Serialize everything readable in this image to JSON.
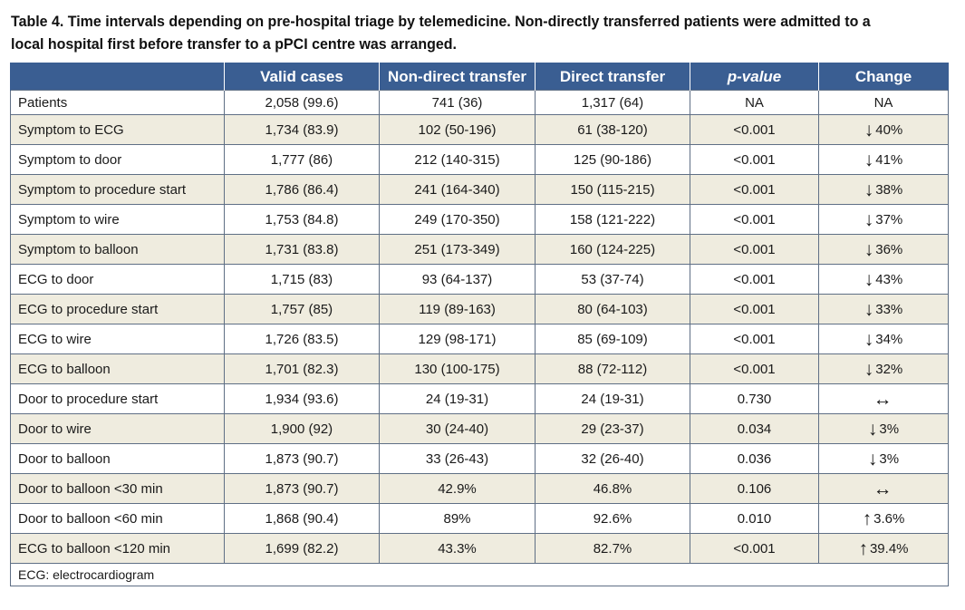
{
  "caption": "Table 4. Time intervals depending on pre-hospital triage by telemedicine. Non-directly transferred patients were admitted to a local hospital first before transfer to a pPCI centre was arranged.",
  "headers": {
    "label": "",
    "valid": "Valid cases",
    "nondirect": "Non-direct transfer",
    "direct": "Direct transfer",
    "pvalue": "p-value",
    "change": "Change"
  },
  "rows": [
    {
      "label": "Patients",
      "valid": "2,058 (99.6)",
      "nondirect": "741 (36)",
      "direct": "1,317 (64)",
      "p": "NA",
      "arrow": "",
      "change": "NA"
    },
    {
      "label": "Symptom to ECG",
      "valid": "1,734 (83.9)",
      "nondirect": "102 (50-196)",
      "direct": "61 (38-120)",
      "p": "<0.001",
      "arrow": "↓",
      "change": "40%"
    },
    {
      "label": "Symptom to door",
      "valid": "1,777 (86)",
      "nondirect": "212 (140-315)",
      "direct": "125 (90-186)",
      "p": "<0.001",
      "arrow": "↓",
      "change": "41%"
    },
    {
      "label": "Symptom to procedure start",
      "valid": "1,786 (86.4)",
      "nondirect": "241 (164-340)",
      "direct": "150 (115-215)",
      "p": "<0.001",
      "arrow": "↓",
      "change": "38%"
    },
    {
      "label": "Symptom to wire",
      "valid": "1,753 (84.8)",
      "nondirect": "249 (170-350)",
      "direct": "158 (121-222)",
      "p": "<0.001",
      "arrow": "↓",
      "change": "37%"
    },
    {
      "label": "Symptom to balloon",
      "valid": "1,731 (83.8)",
      "nondirect": "251 (173-349)",
      "direct": "160 (124-225)",
      "p": "<0.001",
      "arrow": "↓",
      "change": "36%"
    },
    {
      "label": "ECG to door",
      "valid": "1,715 (83)",
      "nondirect": "93 (64-137)",
      "direct": "53 (37-74)",
      "p": "<0.001",
      "arrow": "↓",
      "change": "43%"
    },
    {
      "label": "ECG to procedure start",
      "valid": "1,757 (85)",
      "nondirect": "119 (89-163)",
      "direct": "80 (64-103)",
      "p": "<0.001",
      "arrow": "↓",
      "change": "33%"
    },
    {
      "label": "ECG to wire",
      "valid": "1,726 (83.5)",
      "nondirect": "129 (98-171)",
      "direct": "85 (69-109)",
      "p": "<0.001",
      "arrow": "↓",
      "change": "34%"
    },
    {
      "label": "ECG to balloon",
      "valid": "1,701 (82.3)",
      "nondirect": "130 (100-175)",
      "direct": "88 (72-112)",
      "p": "<0.001",
      "arrow": "↓",
      "change": "32%"
    },
    {
      "label": "Door to procedure start",
      "valid": "1,934 (93.6)",
      "nondirect": "24 (19-31)",
      "direct": "24 (19-31)",
      "p": "0.730",
      "arrow": "↔",
      "change": ""
    },
    {
      "label": "Door to wire",
      "valid": "1,900 (92)",
      "nondirect": "30 (24-40)",
      "direct": "29 (23-37)",
      "p": "0.034",
      "arrow": "↓",
      "change": "3%"
    },
    {
      "label": "Door to balloon",
      "valid": "1,873 (90.7)",
      "nondirect": "33 (26-43)",
      "direct": "32 (26-40)",
      "p": "0.036",
      "arrow": "↓",
      "change": "3%"
    },
    {
      "label": "Door to balloon <30 min",
      "valid": "1,873 (90.7)",
      "nondirect": "42.9%",
      "direct": "46.8%",
      "p": "0.106",
      "arrow": "↔",
      "change": ""
    },
    {
      "label": "Door to balloon <60 min",
      "valid": "1,868 (90.4)",
      "nondirect": "89%",
      "direct": "92.6%",
      "p": "0.010",
      "arrow": "↑",
      "change": "3.6%"
    },
    {
      "label": "ECG to balloon <120 min",
      "valid": "1,699 (82.2)",
      "nondirect": "43.3%",
      "direct": "82.7%",
      "p": "<0.001",
      "arrow": "↑",
      "change": "39.4%"
    }
  ],
  "footnote": "ECG: electrocardiogram",
  "colors": {
    "header_bg": "#3a5e92",
    "stripe": "#efecdf",
    "border": "#5f6f85"
  }
}
